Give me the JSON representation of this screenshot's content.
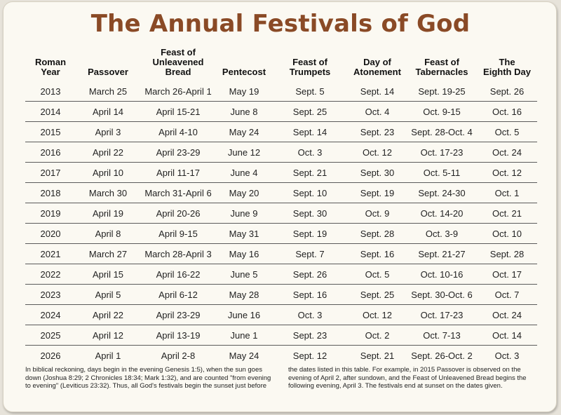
{
  "title": "The Annual Festivals of God",
  "table": {
    "headers": [
      "Roman\nYear",
      "Passover",
      "Feast of\nUnleavened\nBread",
      "Pentecost",
      "Feast of\nTrumpets",
      "Day of\nAtonement",
      "Feast of\nTabernacles",
      "The\nEighth Day"
    ],
    "rows": [
      [
        "2013",
        "March 25",
        "March 26-April 1",
        "May 19",
        "Sept. 5",
        "Sept. 14",
        "Sept. 19-25",
        "Sept. 26"
      ],
      [
        "2014",
        "April 14",
        "April 15-21",
        "June 8",
        "Sept. 25",
        "Oct. 4",
        "Oct. 9-15",
        "Oct. 16"
      ],
      [
        "2015",
        "April 3",
        "April 4-10",
        "May 24",
        "Sept. 14",
        "Sept. 23",
        "Sept. 28-Oct. 4",
        "Oct. 5"
      ],
      [
        "2016",
        "April 22",
        "April 23-29",
        "June 12",
        "Oct. 3",
        "Oct. 12",
        "Oct. 17-23",
        "Oct. 24"
      ],
      [
        "2017",
        "April 10",
        "April 11-17",
        "June 4",
        "Sept. 21",
        "Sept. 30",
        "Oct. 5-11",
        "Oct. 12"
      ],
      [
        "2018",
        "March 30",
        "March 31-April 6",
        "May 20",
        "Sept. 10",
        "Sept. 19",
        "Sept. 24-30",
        "Oct. 1"
      ],
      [
        "2019",
        "April 19",
        "April 20-26",
        "June 9",
        "Sept. 30",
        "Oct. 9",
        "Oct. 14-20",
        "Oct. 21"
      ],
      [
        "2020",
        "April 8",
        "April 9-15",
        "May 31",
        "Sept. 19",
        "Sept. 28",
        "Oct. 3-9",
        "Oct. 10"
      ],
      [
        "2021",
        "March 27",
        "March 28-April 3",
        "May 16",
        "Sept. 7",
        "Sept. 16",
        "Sept. 21-27",
        "Sept. 28"
      ],
      [
        "2022",
        "April 15",
        "April 16-22",
        "June 5",
        "Sept. 26",
        "Oct. 5",
        "Oct. 10-16",
        "Oct. 17"
      ],
      [
        "2023",
        "April 5",
        "April 6-12",
        "May 28",
        "Sept. 16",
        "Sept. 25",
        "Sept. 30-Oct. 6",
        "Oct. 7"
      ],
      [
        "2024",
        "April 22",
        "April 23-29",
        "June 16",
        "Oct. 3",
        "Oct. 12",
        "Oct. 17-23",
        "Oct. 24"
      ],
      [
        "2025",
        "April 12",
        "April 13-19",
        "June 1",
        "Sept. 23",
        "Oct. 2",
        "Oct. 7-13",
        "Oct. 14"
      ],
      [
        "2026",
        "April 1",
        "April 2-8",
        "May 24",
        "Sept. 12",
        "Sept. 21",
        "Sept. 26-Oct. 2",
        "Oct. 3"
      ]
    ]
  },
  "notes": {
    "left": "In biblical reckoning, days begin in the evening Genesis 1:5), when the sun goes down (Joshua 8:29; 2 Chronicles 18:34; Mark 1:32), and are counted \"from evening to evening\" (Leviticus 23:32). Thus, all God's festivals begin the sunset just before",
    "right": "the dates listed in this table. For example, in 2015 Passover is observed on the evening of April 2, after sundown, and the Feast of Unleavened Bread begins the following evening, April 3. The festivals end at sunset on the dates given."
  },
  "colors": {
    "title": "#8a4a26",
    "card_background": "#fbf9f2",
    "page_background": "#e7e3da",
    "rule": "#5b5b5b"
  }
}
